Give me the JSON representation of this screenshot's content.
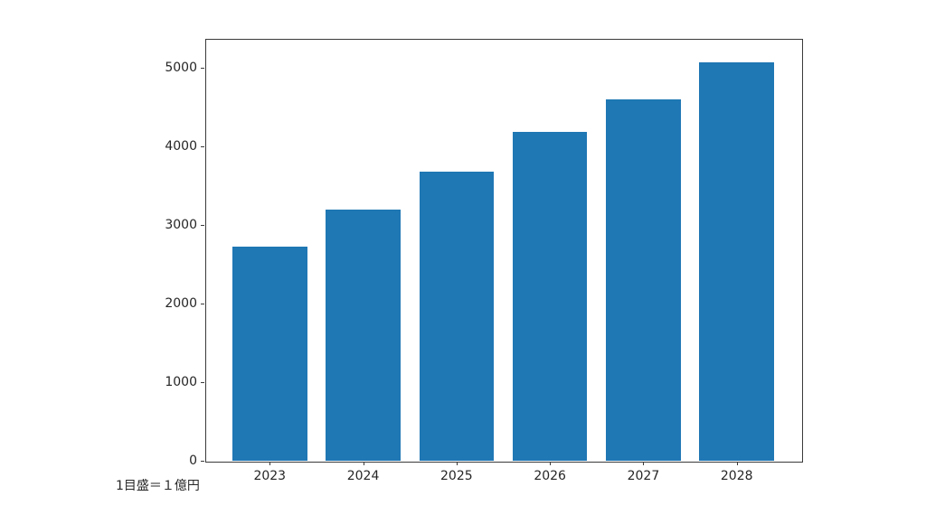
{
  "figure": {
    "background": "#ffffff",
    "spine_color": "#3a3a3a",
    "text_color": "#262626"
  },
  "chart_data": {
    "type": "bar",
    "title": "",
    "xlabel": "",
    "ylabel": "",
    "categories": [
      "2023",
      "2024",
      "2025",
      "2026",
      "2027",
      "2028"
    ],
    "values": [
      2720,
      3200,
      3680,
      4180,
      4600,
      5070
    ],
    "bar_color": "#1f77b4",
    "ylim": [
      0,
      5370
    ],
    "yticks": [
      0,
      1000,
      2000,
      3000,
      4000,
      5000
    ],
    "ytick_labels": [
      "0",
      "1000",
      "2000",
      "3000",
      "4000",
      "5000"
    ],
    "grid": false,
    "legend": null,
    "annotations": [
      "1目盛＝１億円"
    ]
  }
}
